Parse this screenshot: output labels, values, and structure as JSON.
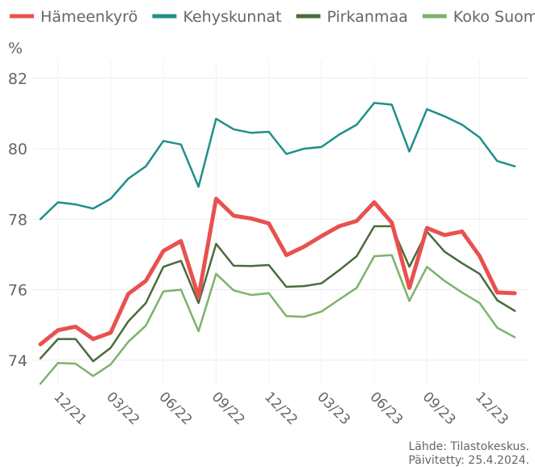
{
  "chart_data": {
    "type": "line",
    "y_label": "%",
    "source": "Lähde: Tilastokeskus.",
    "updated": "Päivitetty: 25.4.2024.",
    "categories": [
      null,
      "12/21",
      null,
      null,
      "03/22",
      null,
      null,
      "06/22",
      null,
      null,
      "09/22",
      null,
      null,
      "12/22",
      null,
      null,
      "03/23",
      null,
      null,
      "06/23",
      null,
      null,
      "09/23",
      null,
      null,
      "12/23",
      null,
      null
    ],
    "series": [
      {
        "name": "Hämeenkyrö",
        "color": "#e8514f",
        "values": [
          74.45,
          74.85,
          74.95,
          74.6,
          74.78,
          75.88,
          76.25,
          77.1,
          77.38,
          75.8,
          78.58,
          78.1,
          78.02,
          77.88,
          76.98,
          77.22,
          77.52,
          77.8,
          77.95,
          78.48,
          77.9,
          76.05,
          77.75,
          77.55,
          77.65,
          76.95,
          75.92,
          75.9
        ]
      },
      {
        "name": "Kehyskunnat",
        "color": "#1f8f8a",
        "values": [
          78.0,
          78.48,
          78.42,
          78.3,
          78.58,
          79.15,
          79.5,
          80.22,
          80.12,
          78.92,
          80.85,
          80.55,
          80.45,
          80.48,
          79.85,
          80.0,
          80.05,
          80.4,
          80.68,
          81.3,
          81.25,
          79.92,
          81.12,
          80.92,
          80.68,
          80.32,
          79.65,
          79.5
        ]
      },
      {
        "name": "Pirkanmaa",
        "color": "#4a6b3a",
        "values": [
          74.05,
          74.6,
          74.6,
          73.97,
          74.35,
          75.1,
          75.62,
          76.65,
          76.82,
          75.62,
          77.3,
          76.68,
          76.67,
          76.7,
          76.08,
          76.1,
          76.18,
          76.55,
          76.95,
          77.8,
          77.8,
          76.65,
          77.65,
          77.08,
          76.75,
          76.45,
          75.7,
          75.4
        ]
      },
      {
        "name": "Koko Suomi",
        "color": "#7db26a",
        "values": [
          73.33,
          73.92,
          73.9,
          73.55,
          73.88,
          74.52,
          74.98,
          75.95,
          76.0,
          74.82,
          76.45,
          75.98,
          75.85,
          75.9,
          75.25,
          75.23,
          75.38,
          75.72,
          76.05,
          76.95,
          76.98,
          75.68,
          76.65,
          76.25,
          75.92,
          75.62,
          74.92,
          74.65
        ]
      }
    ],
    "ylim": [
      73.33,
      82.5
    ],
    "yticks": [
      74,
      76,
      78,
      80,
      82
    ],
    "grid": true,
    "legend": "top"
  }
}
